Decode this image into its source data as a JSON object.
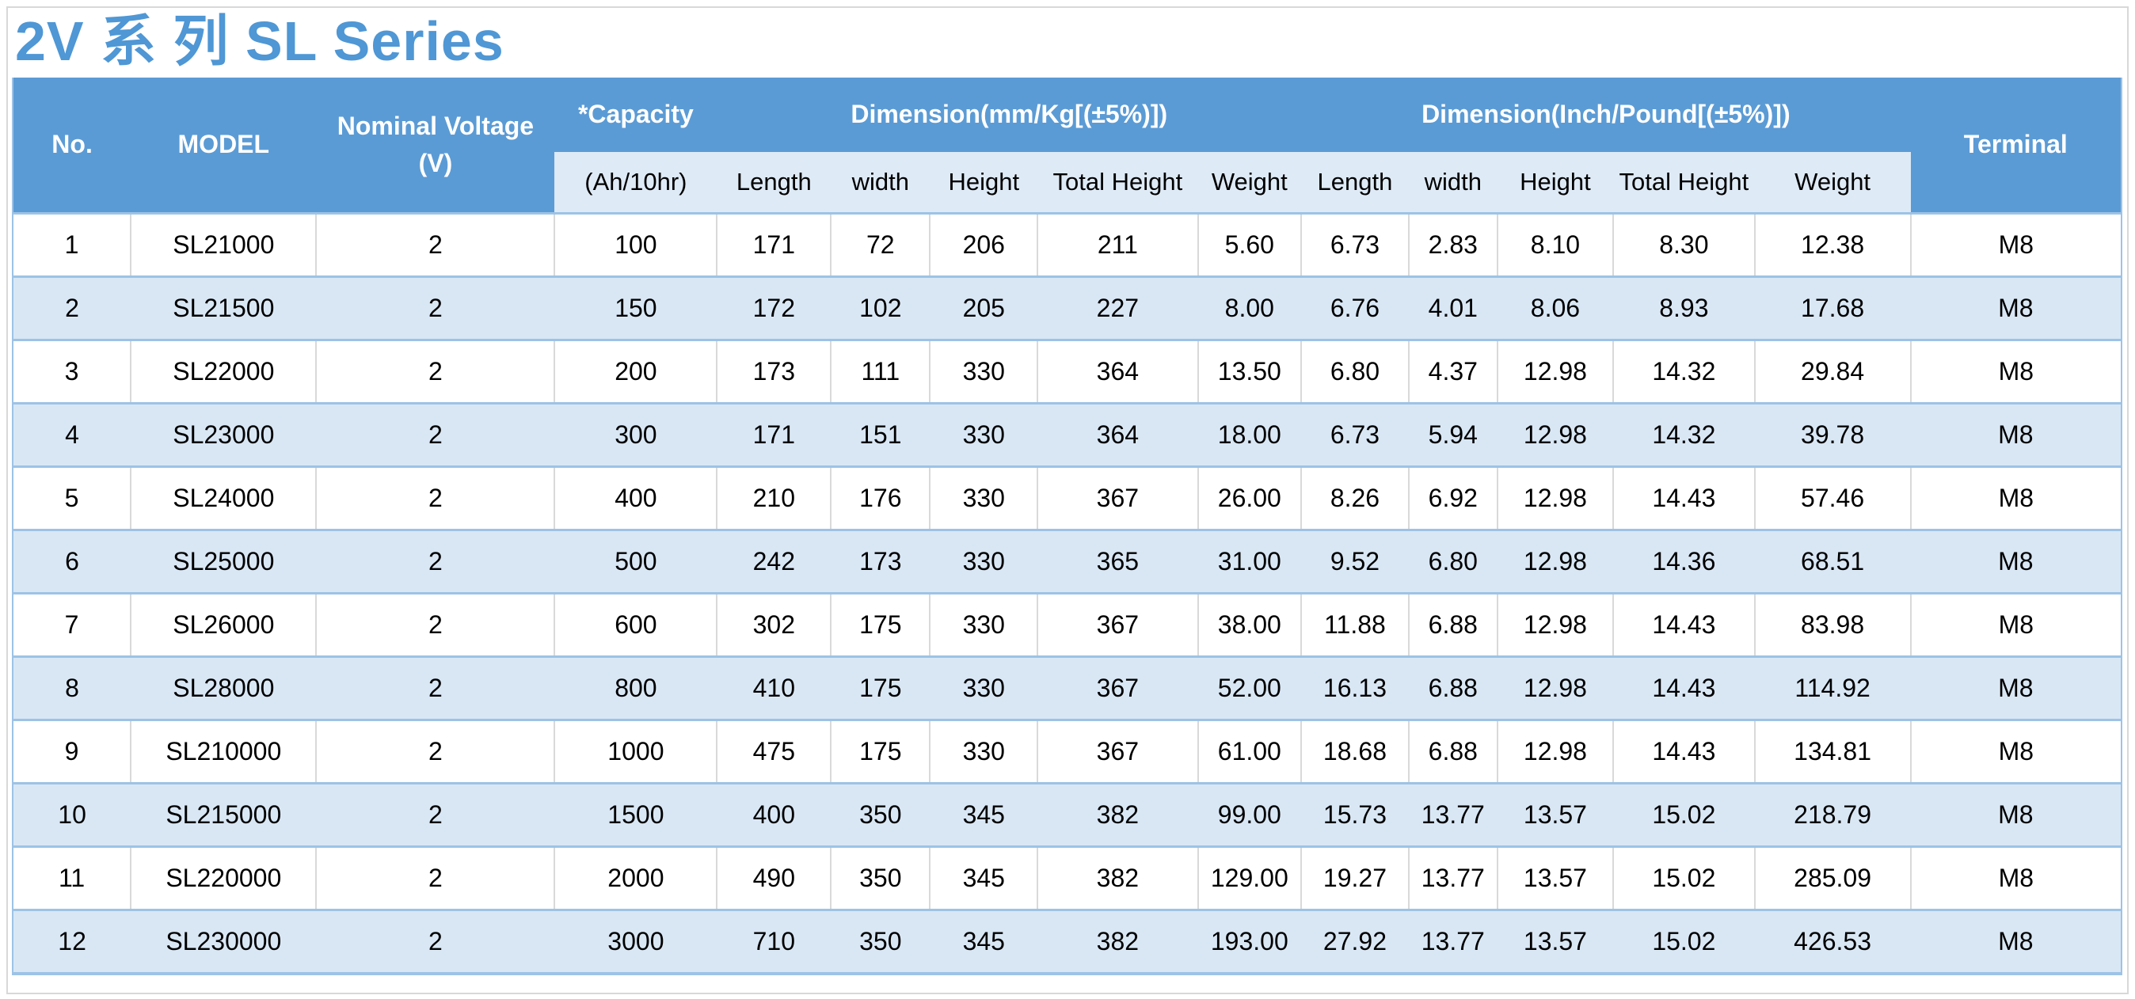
{
  "title": "2V 系 列 SL Series",
  "colors": {
    "header_blue": "#5B9BD5",
    "subheader_blue": "#DEEAF6",
    "row_alt_blue": "#D9E7F5",
    "row_border_blue": "#9DC3E6",
    "grid_gray": "#D9D9D9",
    "title_blue": "#4F97D5",
    "frame_gray": "#D8D8D8"
  },
  "header": {
    "no": "No.",
    "model": "MODEL",
    "nominal_voltage_line1": "Nominal Voltage",
    "nominal_voltage_line2": "(V)",
    "capacity": "*Capacity",
    "capacity_sub": "(Ah/10hr)",
    "dimension_mm": "Dimension(mm/Kg[(±5%)])",
    "dimension_inch": "Dimension(Inch/Pound[(±5%)])",
    "sub_headers": [
      "Length",
      "width",
      "Height",
      "Total Height",
      "Weight"
    ],
    "terminal": "Terminal"
  },
  "rows": [
    [
      "1",
      "SL21000",
      "2",
      "100",
      "171",
      "72",
      "206",
      "211",
      "5.60",
      "6.73",
      "2.83",
      "8.10",
      "8.30",
      "12.38",
      "M8"
    ],
    [
      "2",
      "SL21500",
      "2",
      "150",
      "172",
      "102",
      "205",
      "227",
      "8.00",
      "6.76",
      "4.01",
      "8.06",
      "8.93",
      "17.68",
      "M8"
    ],
    [
      "3",
      "SL22000",
      "2",
      "200",
      "173",
      "111",
      "330",
      "364",
      "13.50",
      "6.80",
      "4.37",
      "12.98",
      "14.32",
      "29.84",
      "M8"
    ],
    [
      "4",
      "SL23000",
      "2",
      "300",
      "171",
      "151",
      "330",
      "364",
      "18.00",
      "6.73",
      "5.94",
      "12.98",
      "14.32",
      "39.78",
      "M8"
    ],
    [
      "5",
      "SL24000",
      "2",
      "400",
      "210",
      "176",
      "330",
      "367",
      "26.00",
      "8.26",
      "6.92",
      "12.98",
      "14.43",
      "57.46",
      "M8"
    ],
    [
      "6",
      "SL25000",
      "2",
      "500",
      "242",
      "173",
      "330",
      "365",
      "31.00",
      "9.52",
      "6.80",
      "12.98",
      "14.36",
      "68.51",
      "M8"
    ],
    [
      "7",
      "SL26000",
      "2",
      "600",
      "302",
      "175",
      "330",
      "367",
      "38.00",
      "11.88",
      "6.88",
      "12.98",
      "14.43",
      "83.98",
      "M8"
    ],
    [
      "8",
      "SL28000",
      "2",
      "800",
      "410",
      "175",
      "330",
      "367",
      "52.00",
      "16.13",
      "6.88",
      "12.98",
      "14.43",
      "114.92",
      "M8"
    ],
    [
      "9",
      "SL210000",
      "2",
      "1000",
      "475",
      "175",
      "330",
      "367",
      "61.00",
      "18.68",
      "6.88",
      "12.98",
      "14.43",
      "134.81",
      "M8"
    ],
    [
      "10",
      "SL215000",
      "2",
      "1500",
      "400",
      "350",
      "345",
      "382",
      "99.00",
      "15.73",
      "13.77",
      "13.57",
      "15.02",
      "218.79",
      "M8"
    ],
    [
      "11",
      "SL220000",
      "2",
      "2000",
      "490",
      "350",
      "345",
      "382",
      "129.00",
      "19.27",
      "13.77",
      "13.57",
      "15.02",
      "285.09",
      "M8"
    ],
    [
      "12",
      "SL230000",
      "2",
      "3000",
      "710",
      "350",
      "345",
      "382",
      "193.00",
      "27.92",
      "13.77",
      "13.57",
      "15.02",
      "426.53",
      "M8"
    ]
  ]
}
